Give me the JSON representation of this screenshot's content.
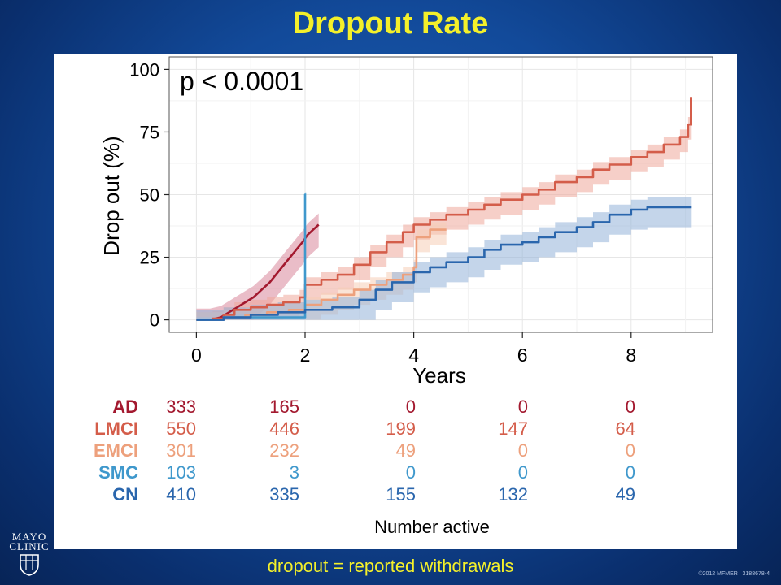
{
  "slide": {
    "title": "Dropout Rate",
    "caption": "dropout = reported withdrawals",
    "logo_line1": "MAYO",
    "logo_line2": "CLINIC",
    "copyright": "©2012 MFMER  |  3188678-4"
  },
  "chart_data": {
    "type": "line",
    "annotation": "p < 0.0001",
    "xlabel": "Years",
    "ylabel": "Drop out (%)",
    "xlim": [
      -0.5,
      9.5
    ],
    "ylim": [
      -5,
      105
    ],
    "xticks": [
      0,
      2,
      4,
      6,
      8
    ],
    "yticks": [
      0,
      25,
      50,
      75,
      100
    ],
    "grid": true,
    "series": [
      {
        "name": "AD",
        "color": "#a3192f",
        "band_color": "#d9869a",
        "step": false,
        "band": 4.5,
        "x": [
          0,
          0.25,
          0.45,
          0.6,
          0.75,
          0.9,
          1.05,
          1.2,
          1.35,
          1.5,
          1.65,
          1.8,
          1.95,
          2.05,
          2.15,
          2.25
        ],
        "y": [
          0,
          0,
          1,
          3,
          5,
          7,
          9,
          12,
          15,
          19,
          23,
          27,
          31,
          34,
          36,
          38
        ]
      },
      {
        "name": "LMCI",
        "color": "#d45d4a",
        "band_color": "#eea79b",
        "step": true,
        "band": 3,
        "x": [
          0,
          0.3,
          0.5,
          0.7,
          1.0,
          1.3,
          1.6,
          1.9,
          2.0,
          2.3,
          2.6,
          2.9,
          3.2,
          3.5,
          3.8,
          4.0,
          4.3,
          4.6,
          5.0,
          5.3,
          5.6,
          6.0,
          6.3,
          6.6,
          7.0,
          7.3,
          7.6,
          8.0,
          8.3,
          8.6,
          8.9,
          9.05,
          9.1
        ],
        "y": [
          0,
          0.5,
          2,
          4,
          5,
          6,
          7,
          9,
          14,
          16,
          18,
          22,
          27,
          31,
          35,
          38,
          40,
          42,
          44,
          46,
          48,
          50,
          52,
          55,
          57,
          60,
          62,
          65,
          67,
          70,
          73,
          78,
          89
        ]
      },
      {
        "name": "EMCI",
        "color": "#eda07c",
        "band_color": "#f6cdb7",
        "step": true,
        "band": 3,
        "x": [
          0,
          0.5,
          0.9,
          1.3,
          1.7,
          2.0,
          2.3,
          2.6,
          2.9,
          3.2,
          3.5,
          3.8,
          4.0,
          4.05,
          4.3,
          4.6
        ],
        "y": [
          0,
          1,
          2,
          3,
          4,
          6,
          8,
          10,
          12,
          14,
          16,
          18,
          21,
          33,
          36,
          36
        ]
      },
      {
        "name": "SMC",
        "color": "#3f98cc",
        "band_color": "#a9d0e8",
        "step": true,
        "band": 1,
        "x": [
          0,
          0.5,
          1.0,
          1.5,
          1.98,
          2.0,
          2.02
        ],
        "y": [
          0,
          1,
          1,
          1,
          1,
          50,
          50
        ]
      },
      {
        "name": "CN",
        "color": "#2a66ad",
        "band_color": "#93b3d9",
        "step": true,
        "band": 4,
        "x": [
          0,
          0.5,
          1.0,
          1.5,
          2.0,
          2.5,
          3.0,
          3.3,
          3.6,
          4.0,
          4.3,
          4.6,
          5.0,
          5.3,
          5.6,
          6.0,
          6.3,
          6.6,
          7.0,
          7.3,
          7.6,
          8.0,
          8.3,
          8.6,
          9.1
        ],
        "y": [
          0,
          1,
          2,
          3,
          4,
          5,
          8,
          12,
          15,
          19,
          21,
          23,
          25,
          28,
          30,
          31,
          33,
          35,
          37,
          39,
          42,
          44,
          45,
          45,
          45
        ]
      }
    ],
    "risk_table": {
      "title": "Number active",
      "columns": [
        0,
        2,
        4,
        6,
        8
      ],
      "rows": [
        {
          "label": "AD",
          "color": "#a3192f",
          "values": [
            "333",
            "165",
            "0",
            "0",
            "0"
          ]
        },
        {
          "label": "LMCI",
          "color": "#d45d4a",
          "values": [
            "550",
            "446",
            "199",
            "147",
            "64"
          ]
        },
        {
          "label": "EMCI",
          "color": "#eda07c",
          "values": [
            "301",
            "232",
            "49",
            "0",
            "0"
          ]
        },
        {
          "label": "SMC",
          "color": "#3f98cc",
          "values": [
            "103",
            "3",
            "0",
            "0",
            "0"
          ]
        },
        {
          "label": "CN",
          "color": "#2a66ad",
          "values": [
            "410",
            "335",
            "155",
            "132",
            "49"
          ]
        }
      ]
    }
  }
}
